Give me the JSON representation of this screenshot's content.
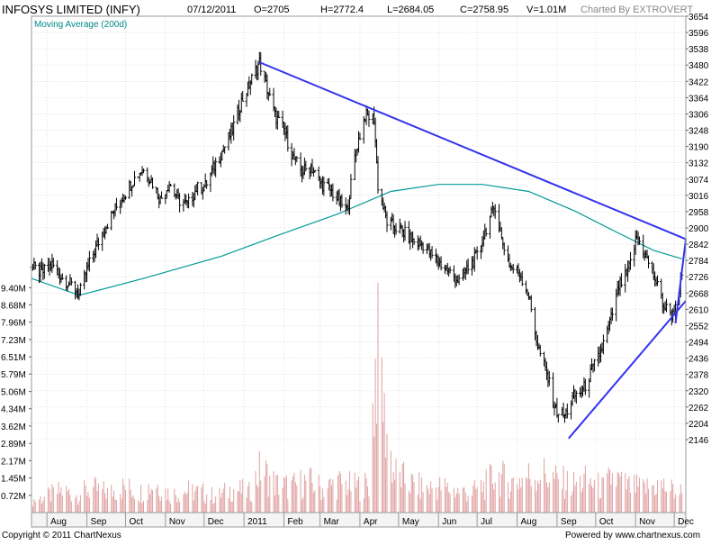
{
  "header": {
    "symbol": "INFOSYS LIMITED (INFY)",
    "date": "07/12/2011",
    "open": "O=2705",
    "high": "H=2772.4",
    "low": "L=2684.05",
    "close": "C=2758.95",
    "volume": "V=1.01M",
    "charted_by": "Charted By EXTROVERT",
    "indicator": "Moving Average (200d)"
  },
  "footer": {
    "copyright": "Copyright © 2011 ChartNexus",
    "powered": "Powered by www.chartnexus.com"
  },
  "colors": {
    "price": "#000000",
    "moving_average": "#009999",
    "volume": "#e0a0a0",
    "trendline": "#3333ee",
    "grid": "#cccccc",
    "text": "#000000",
    "indicator_label": "#008888"
  },
  "chart_data": {
    "type": "line",
    "subtype": "ohlc",
    "grid": true,
    "x_labels": [
      "Aug",
      "Sep",
      "Oct",
      "Nov",
      "Dec",
      "2011",
      "Feb",
      "Mar",
      "Apr",
      "May",
      "Jun",
      "Jul",
      "Aug",
      "Sep",
      "Oct",
      "Nov",
      "Dec"
    ],
    "x_range": [
      "2010-07-20",
      "2011-12-10"
    ],
    "y_price_ticks": [
      "3654",
      "3596",
      "3538",
      "3480",
      "3422",
      "3364",
      "3306",
      "3248",
      "3190",
      "3132",
      "3074",
      "3016",
      "2958",
      "2900",
      "2842",
      "2784",
      "2726",
      "2668",
      "2610",
      "2552",
      "2494",
      "2436",
      "2378",
      "2320",
      "2262",
      "2204",
      "2146"
    ],
    "y_price_range": [
      2146,
      3654
    ],
    "y_volume_ticks": [
      "9.40M",
      "8.68M",
      "7.96M",
      "7.23M",
      "6.51M",
      "5.79M",
      "5.06M",
      "4.34M",
      "3.62M",
      "2.89M",
      "2.17M",
      "1.45M",
      "0.72M"
    ],
    "y_volume_range": [
      0,
      9.6
    ],
    "price_series": [
      {
        "x": "2010-07-20",
        "y": 2760
      },
      {
        "x": "2010-07-28",
        "y": 2740
      },
      {
        "x": "2010-08-05",
        "y": 2770
      },
      {
        "x": "2010-08-13",
        "y": 2720
      },
      {
        "x": "2010-08-22",
        "y": 2690
      },
      {
        "x": "2010-08-26",
        "y": 2660
      },
      {
        "x": "2010-09-01",
        "y": 2750
      },
      {
        "x": "2010-09-08",
        "y": 2830
      },
      {
        "x": "2010-09-15",
        "y": 2900
      },
      {
        "x": "2010-09-22",
        "y": 2960
      },
      {
        "x": "2010-09-30",
        "y": 3020
      },
      {
        "x": "2010-10-07",
        "y": 3070
      },
      {
        "x": "2010-10-14",
        "y": 3110
      },
      {
        "x": "2010-10-21",
        "y": 3070
      },
      {
        "x": "2010-10-28",
        "y": 3000
      },
      {
        "x": "2010-11-04",
        "y": 3060
      },
      {
        "x": "2010-11-11",
        "y": 3000
      },
      {
        "x": "2010-11-18",
        "y": 2980
      },
      {
        "x": "2010-11-25",
        "y": 3040
      },
      {
        "x": "2010-12-02",
        "y": 3050
      },
      {
        "x": "2010-12-09",
        "y": 3120
      },
      {
        "x": "2010-12-16",
        "y": 3180
      },
      {
        "x": "2010-12-23",
        "y": 3250
      },
      {
        "x": "2010-12-30",
        "y": 3350
      },
      {
        "x": "2011-01-06",
        "y": 3420
      },
      {
        "x": "2011-01-13",
        "y": 3490
      },
      {
        "x": "2011-01-18",
        "y": 3410
      },
      {
        "x": "2011-01-25",
        "y": 3300
      },
      {
        "x": "2011-02-01",
        "y": 3250
      },
      {
        "x": "2011-02-08",
        "y": 3150
      },
      {
        "x": "2011-02-15",
        "y": 3100
      },
      {
        "x": "2011-02-22",
        "y": 3120
      },
      {
        "x": "2011-03-01",
        "y": 3060
      },
      {
        "x": "2011-03-08",
        "y": 3040
      },
      {
        "x": "2011-03-15",
        "y": 3000
      },
      {
        "x": "2011-03-22",
        "y": 2960
      },
      {
        "x": "2011-03-29",
        "y": 3180
      },
      {
        "x": "2011-04-05",
        "y": 3300
      },
      {
        "x": "2011-04-12",
        "y": 3290
      },
      {
        "x": "2011-04-15",
        "y": 3050
      },
      {
        "x": "2011-04-22",
        "y": 2920
      },
      {
        "x": "2011-04-29",
        "y": 2900
      },
      {
        "x": "2011-05-06",
        "y": 2880
      },
      {
        "x": "2011-05-13",
        "y": 2850
      },
      {
        "x": "2011-05-20",
        "y": 2840
      },
      {
        "x": "2011-05-27",
        "y": 2800
      },
      {
        "x": "2011-06-03",
        "y": 2770
      },
      {
        "x": "2011-06-10",
        "y": 2740
      },
      {
        "x": "2011-06-17",
        "y": 2710
      },
      {
        "x": "2011-06-24",
        "y": 2760
      },
      {
        "x": "2011-07-01",
        "y": 2800
      },
      {
        "x": "2011-07-08",
        "y": 2900
      },
      {
        "x": "2011-07-15",
        "y": 2980
      },
      {
        "x": "2011-07-20",
        "y": 2860
      },
      {
        "x": "2011-07-27",
        "y": 2760
      },
      {
        "x": "2011-08-03",
        "y": 2740
      },
      {
        "x": "2011-08-10",
        "y": 2660
      },
      {
        "x": "2011-08-17",
        "y": 2480
      },
      {
        "x": "2011-08-24",
        "y": 2380
      },
      {
        "x": "2011-08-31",
        "y": 2250
      },
      {
        "x": "2011-09-07",
        "y": 2230
      },
      {
        "x": "2011-09-14",
        "y": 2300
      },
      {
        "x": "2011-09-21",
        "y": 2320
      },
      {
        "x": "2011-09-28",
        "y": 2390
      },
      {
        "x": "2011-10-05",
        "y": 2460
      },
      {
        "x": "2011-10-12",
        "y": 2560
      },
      {
        "x": "2011-10-19",
        "y": 2690
      },
      {
        "x": "2011-10-26",
        "y": 2740
      },
      {
        "x": "2011-11-02",
        "y": 2870
      },
      {
        "x": "2011-11-09",
        "y": 2800
      },
      {
        "x": "2011-11-16",
        "y": 2720
      },
      {
        "x": "2011-11-23",
        "y": 2620
      },
      {
        "x": "2011-11-30",
        "y": 2590
      },
      {
        "x": "2011-12-07",
        "y": 2720
      }
    ],
    "moving_average_series": [
      {
        "x": "2010-07-20",
        "y": 2720
      },
      {
        "x": "2010-08-26",
        "y": 2660
      },
      {
        "x": "2010-10-15",
        "y": 2720
      },
      {
        "x": "2010-12-15",
        "y": 2800
      },
      {
        "x": "2011-01-25",
        "y": 2870
      },
      {
        "x": "2011-03-15",
        "y": 2950
      },
      {
        "x": "2011-04-25",
        "y": 3030
      },
      {
        "x": "2011-06-01",
        "y": 3055
      },
      {
        "x": "2011-07-05",
        "y": 3055
      },
      {
        "x": "2011-08-10",
        "y": 3030
      },
      {
        "x": "2011-09-15",
        "y": 2960
      },
      {
        "x": "2011-10-15",
        "y": 2890
      },
      {
        "x": "2011-11-15",
        "y": 2820
      },
      {
        "x": "2011-12-07",
        "y": 2790
      }
    ],
    "volume_series": [
      {
        "x": "2010-07-20",
        "y": 0.6
      },
      {
        "x": "2010-08-01",
        "y": 0.8
      },
      {
        "x": "2010-08-12",
        "y": 1.1
      },
      {
        "x": "2010-08-24",
        "y": 0.9
      },
      {
        "x": "2010-09-05",
        "y": 1.2
      },
      {
        "x": "2010-09-18",
        "y": 1.0
      },
      {
        "x": "2010-09-30",
        "y": 1.3
      },
      {
        "x": "2010-10-12",
        "y": 1.0
      },
      {
        "x": "2010-10-24",
        "y": 1.5
      },
      {
        "x": "2010-11-05",
        "y": 0.9
      },
      {
        "x": "2010-11-17",
        "y": 1.1
      },
      {
        "x": "2010-11-29",
        "y": 1.0
      },
      {
        "x": "2010-12-11",
        "y": 0.8
      },
      {
        "x": "2010-12-23",
        "y": 1.2
      },
      {
        "x": "2011-01-05",
        "y": 1.0
      },
      {
        "x": "2011-01-14",
        "y": 2.2
      },
      {
        "x": "2011-01-26",
        "y": 1.4
      },
      {
        "x": "2011-02-07",
        "y": 1.3
      },
      {
        "x": "2011-02-19",
        "y": 1.6
      },
      {
        "x": "2011-03-03",
        "y": 1.2
      },
      {
        "x": "2011-03-15",
        "y": 1.5
      },
      {
        "x": "2011-03-27",
        "y": 1.3
      },
      {
        "x": "2011-04-08",
        "y": 1.4
      },
      {
        "x": "2011-04-15",
        "y": 9.6
      },
      {
        "x": "2011-04-20",
        "y": 5.0
      },
      {
        "x": "2011-04-27",
        "y": 2.0
      },
      {
        "x": "2011-05-09",
        "y": 1.5
      },
      {
        "x": "2011-05-21",
        "y": 1.2
      },
      {
        "x": "2011-06-02",
        "y": 1.3
      },
      {
        "x": "2011-06-14",
        "y": 1.1
      },
      {
        "x": "2011-06-26",
        "y": 1.0
      },
      {
        "x": "2011-07-08",
        "y": 1.4
      },
      {
        "x": "2011-07-15",
        "y": 1.9
      },
      {
        "x": "2011-07-27",
        "y": 1.5
      },
      {
        "x": "2011-08-08",
        "y": 1.8
      },
      {
        "x": "2011-08-20",
        "y": 2.0
      },
      {
        "x": "2011-09-01",
        "y": 1.6
      },
      {
        "x": "2011-09-13",
        "y": 1.4
      },
      {
        "x": "2011-09-25",
        "y": 1.6
      },
      {
        "x": "2011-10-07",
        "y": 1.2
      },
      {
        "x": "2011-10-14",
        "y": 1.8
      },
      {
        "x": "2011-10-26",
        "y": 1.3
      },
      {
        "x": "2011-11-07",
        "y": 1.2
      },
      {
        "x": "2011-11-19",
        "y": 1.4
      },
      {
        "x": "2011-12-01",
        "y": 1.1
      },
      {
        "x": "2011-12-07",
        "y": 1.0
      }
    ],
    "trendlines": [
      {
        "from": {
          "x": "2011-01-13",
          "y": 3490
        },
        "to": {
          "x": "2011-12-10",
          "y": 2860
        }
      },
      {
        "from": {
          "x": "2011-09-10",
          "y": 2150
        },
        "to": {
          "x": "2011-12-10",
          "y": 2640
        }
      },
      {
        "from": {
          "x": "2011-12-02",
          "y": 2560
        },
        "to": {
          "x": "2011-12-10",
          "y": 2860
        }
      }
    ]
  }
}
